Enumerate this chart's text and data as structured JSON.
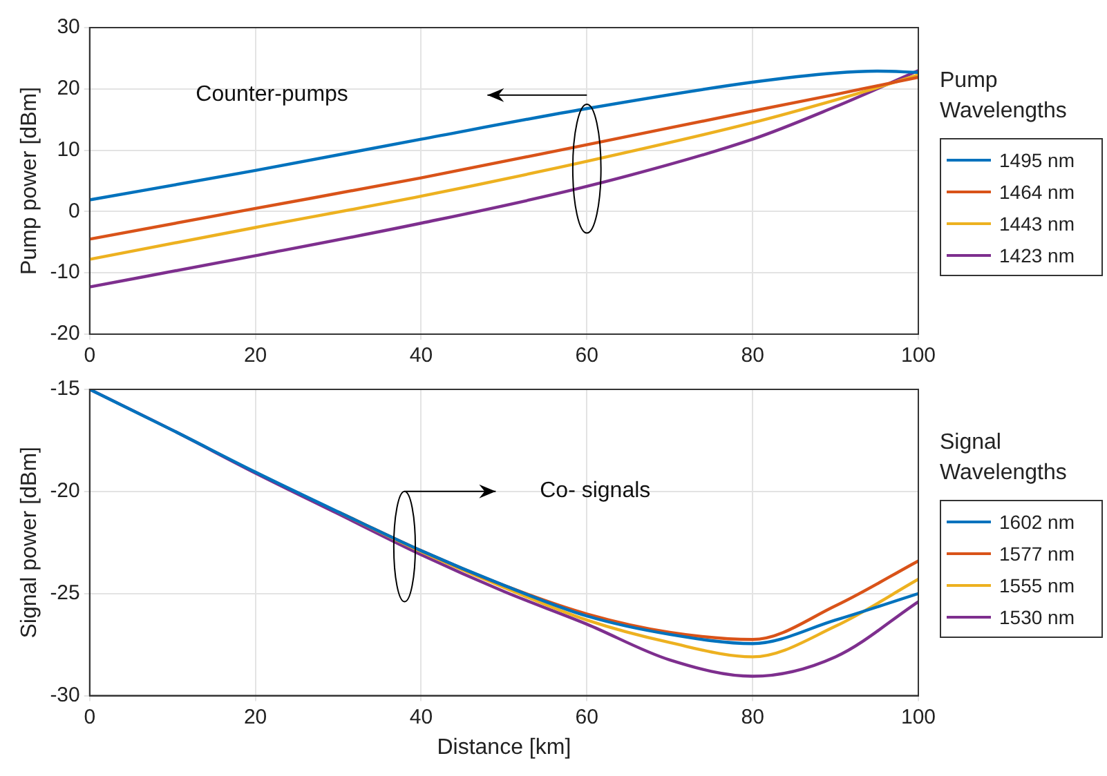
{
  "chart_data": [
    {
      "type": "line",
      "ylabel": "Pump power [dBm]",
      "legend_title": "Pump Wavelengths",
      "legend": "right",
      "grid": true,
      "marker": "none",
      "line_style": "solid",
      "x": [
        0,
        20,
        40,
        60,
        80,
        90,
        95,
        100
      ],
      "xlim": [
        0,
        100
      ],
      "xticks": [
        0,
        20,
        40,
        60,
        80,
        100
      ],
      "ylim": [
        -20,
        30
      ],
      "yticks": [
        -20,
        -10,
        0,
        10,
        20,
        30
      ],
      "annotations": [
        "Counter-pumps"
      ],
      "series": [
        {
          "name": "1495 nm",
          "color": "#0072bd",
          "values": [
            1.9,
            6.7,
            11.8,
            16.8,
            21.1,
            22.6,
            22.9,
            22.7
          ]
        },
        {
          "name": "1464 nm",
          "color": "#d95319",
          "values": [
            -4.5,
            0.5,
            5.5,
            10.9,
            16.4,
            19.1,
            20.5,
            21.9
          ]
        },
        {
          "name": "1443 nm",
          "color": "#edb120",
          "values": [
            -7.8,
            -2.6,
            2.5,
            8.2,
            14.5,
            18.2,
            20.2,
            22.3
          ]
        },
        {
          "name": "1423 nm",
          "color": "#7e2f8e",
          "values": [
            -12.3,
            -7.2,
            -1.9,
            4.1,
            11.8,
            17.1,
            20.0,
            23.0
          ]
        }
      ]
    },
    {
      "type": "line",
      "xlabel": "Distance [km]",
      "ylabel": "Signal power [dBm]",
      "legend_title": "Signal Wavelengths",
      "legend": "right",
      "grid": true,
      "marker": "none",
      "line_style": "solid",
      "x": [
        0,
        10,
        20,
        30,
        40,
        50,
        60,
        70,
        80,
        90,
        100
      ],
      "xlim": [
        0,
        100
      ],
      "xticks": [
        0,
        20,
        40,
        60,
        80,
        100
      ],
      "ylim": [
        -30,
        -15
      ],
      "yticks": [
        -30,
        -25,
        -20,
        -15
      ],
      "annotations": [
        "Co- signals"
      ],
      "series": [
        {
          "name": "1602 nm",
          "color": "#0072bd",
          "values": [
            -15,
            -17.0,
            -19.05,
            -21.0,
            -22.9,
            -24.6,
            -26.1,
            -27.0,
            -27.45,
            -26.3,
            -25.0
          ]
        },
        {
          "name": "1577 nm",
          "color": "#d95319",
          "values": [
            null,
            null,
            null,
            -21.0,
            -22.9,
            -24.6,
            -26.0,
            -26.9,
            -27.25,
            -25.6,
            -23.4
          ]
        },
        {
          "name": "1555 nm",
          "color": "#edb120",
          "values": [
            null,
            null,
            null,
            -21.0,
            -22.95,
            -24.7,
            -26.3,
            -27.4,
            -28.1,
            -26.6,
            -24.3
          ]
        },
        {
          "name": "1530 nm",
          "color": "#7e2f8e",
          "values": [
            -15,
            -17.0,
            -19.1,
            -21.1,
            -23.1,
            -24.9,
            -26.5,
            -28.25,
            -29.05,
            -28.1,
            -25.4
          ]
        }
      ]
    }
  ]
}
